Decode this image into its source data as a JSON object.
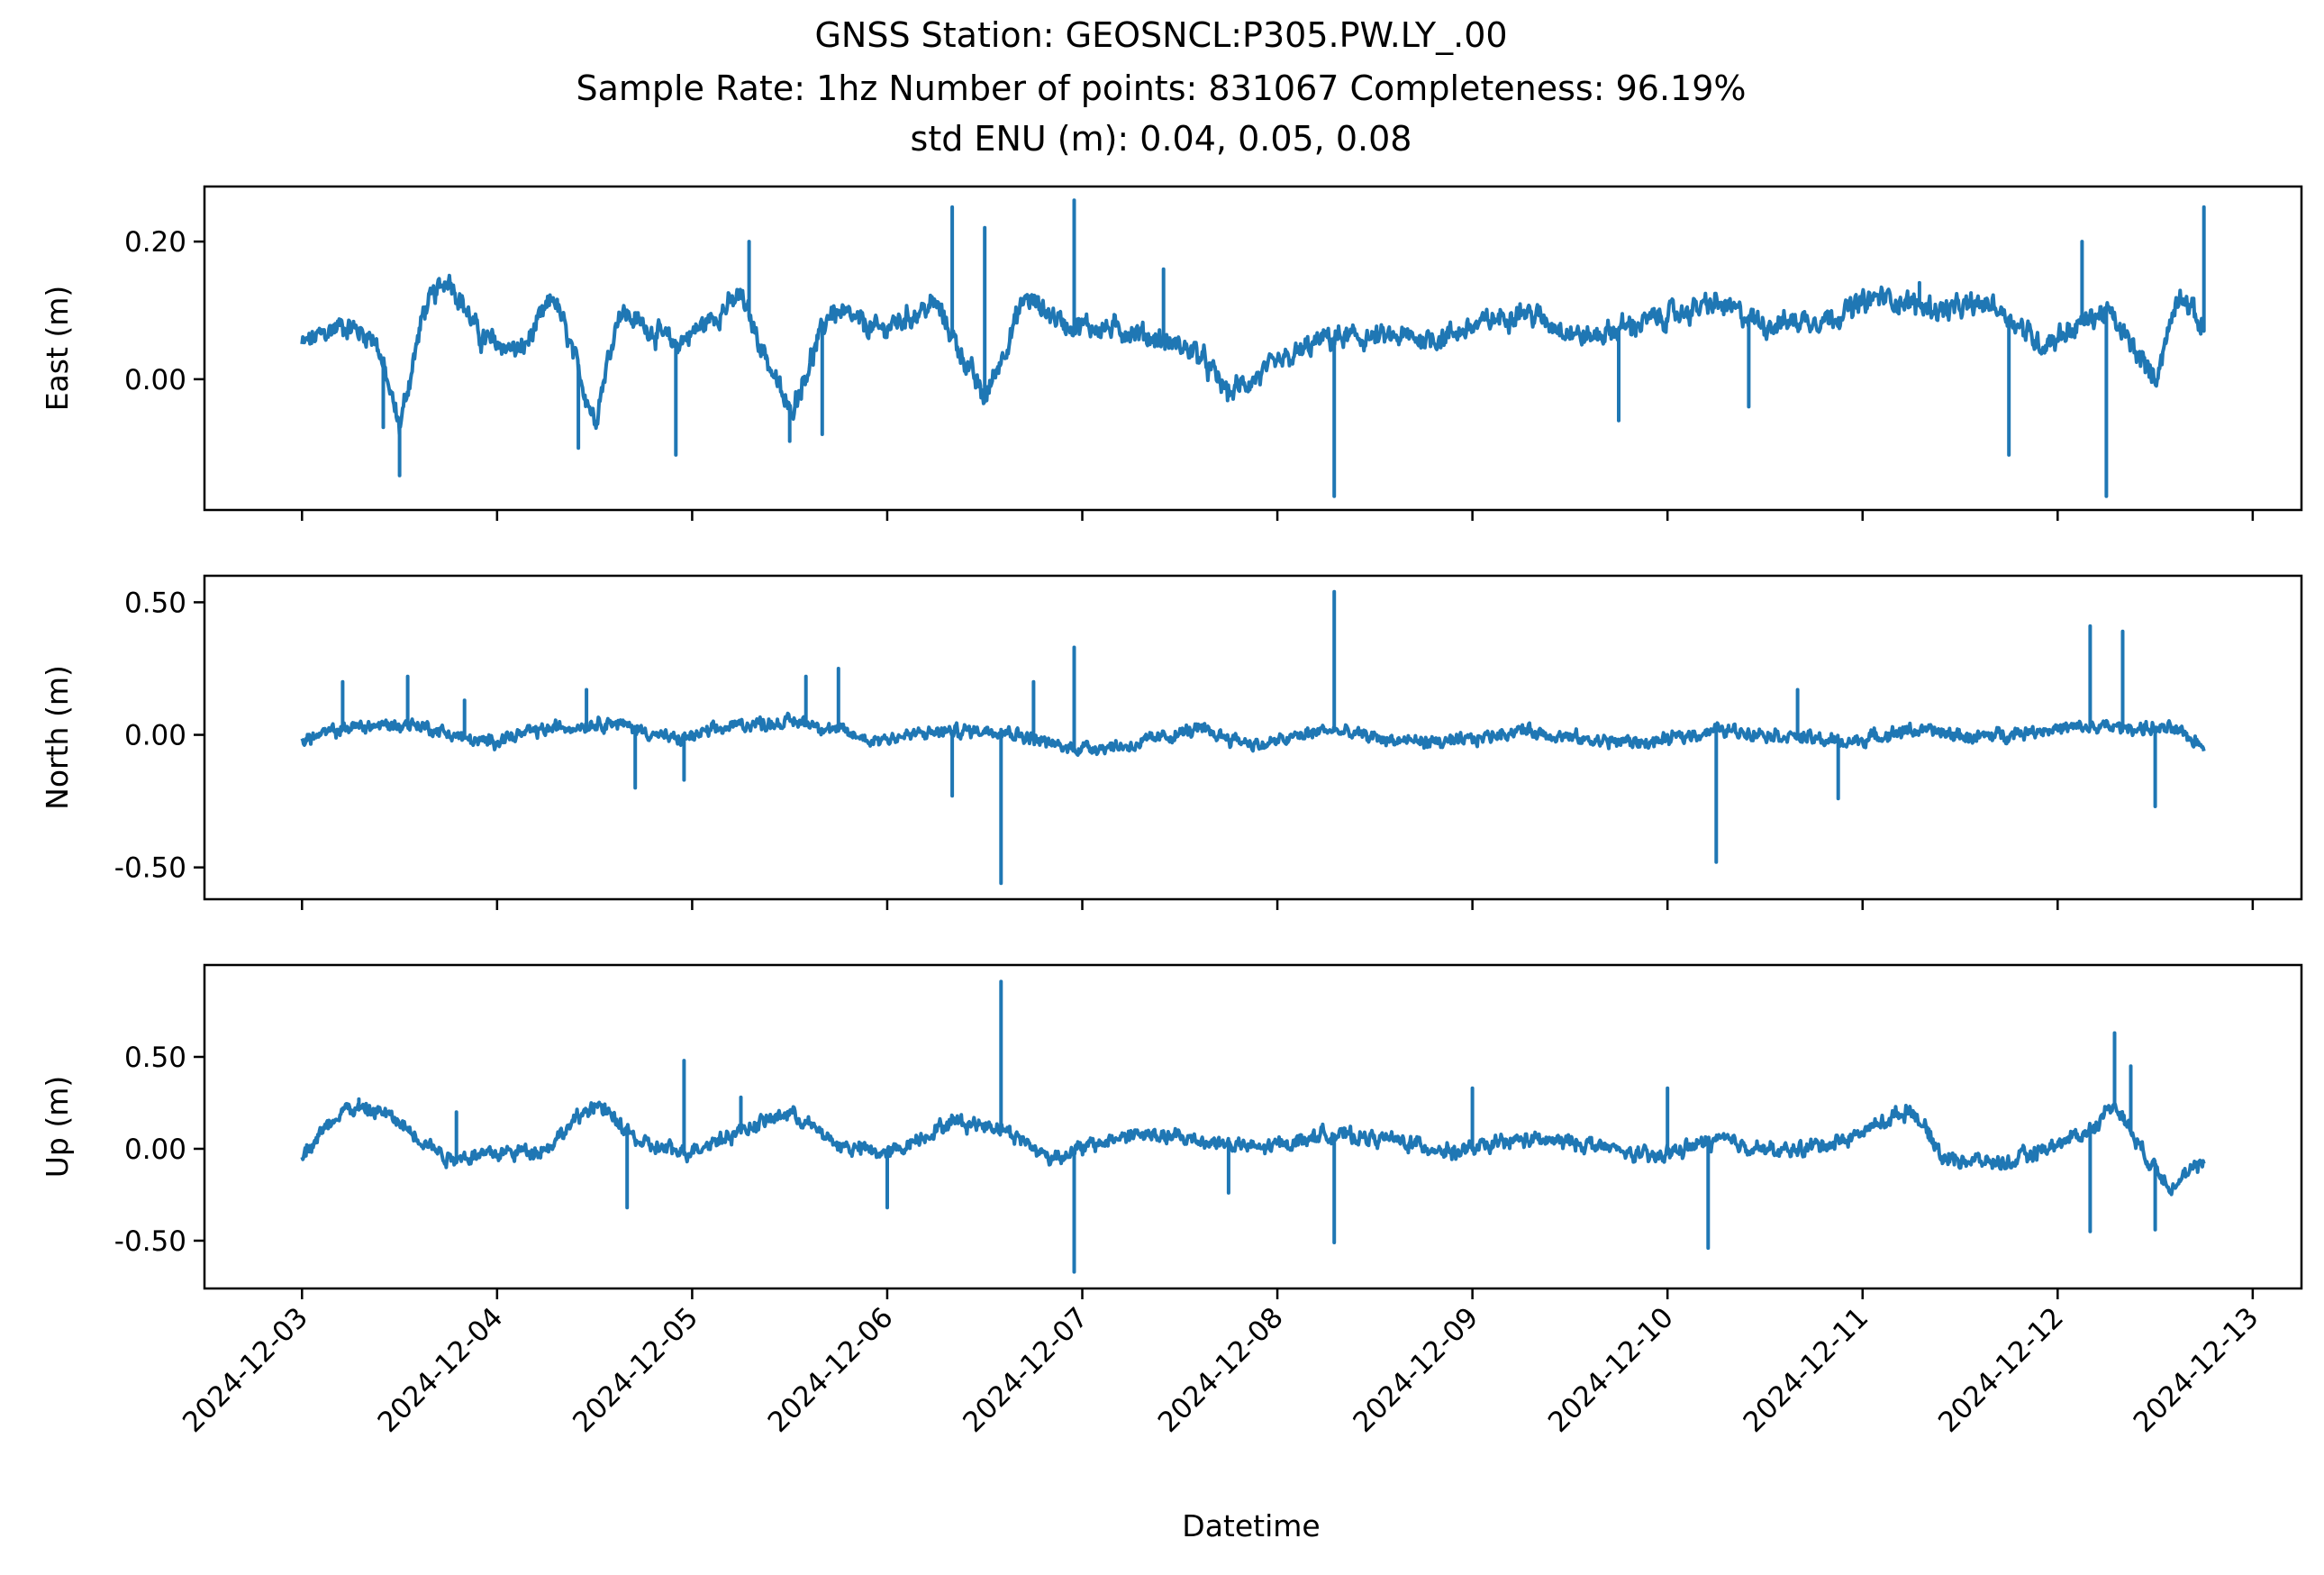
{
  "chart_data": {
    "type": "line",
    "title": {
      "line1": "GNSS Station: GEOSNCL:P305.PW.LY_.00",
      "line2": "Sample Rate: 1hz   Number of points: 831067    Completeness:  96.19%",
      "line3": "std ENU (m):  0.04, 0.05, 0.08"
    },
    "xlabel": "Datetime",
    "x_ticks": [
      "2024-12-03",
      "2024-12-04",
      "2024-12-05",
      "2024-12-06",
      "2024-12-07",
      "2024-12-08",
      "2024-12-09",
      "2024-12-10",
      "2024-12-11",
      "2024-12-12",
      "2024-12-13"
    ],
    "xlim": [
      "2024-12-02T12:00",
      "2024-12-13T06:00"
    ],
    "data_range": [
      "2024-12-03T00:00",
      "2024-12-12T18:00"
    ],
    "series_color": "#1f77b4",
    "panels": [
      {
        "ylabel": "East (m)",
        "ylim": [
          -0.19,
          0.28
        ],
        "y_ticks": [
          0.0,
          0.2
        ],
        "y_tick_labels": [
          "0.00",
          "0.20"
        ],
        "x_tick_labels_visible": false,
        "noise": 0.012,
        "baseline": [
          [
            "2024-12-03T00:00",
            0.05
          ],
          [
            "2024-12-03T05:00",
            0.08
          ],
          [
            "2024-12-03T09:00",
            0.06
          ],
          [
            "2024-12-03T12:00",
            -0.07
          ],
          [
            "2024-12-03T15:00",
            0.1
          ],
          [
            "2024-12-03T18:00",
            0.15
          ],
          [
            "2024-12-03T22:00",
            0.06
          ],
          [
            "2024-12-04T03:00",
            0.04
          ],
          [
            "2024-12-04T07:00",
            0.12
          ],
          [
            "2024-12-04T12:00",
            -0.06
          ],
          [
            "2024-12-04T15:00",
            0.1
          ],
          [
            "2024-12-04T22:00",
            0.05
          ],
          [
            "2024-12-05T06:00",
            0.12
          ],
          [
            "2024-12-05T12:00",
            -0.05
          ],
          [
            "2024-12-05T17:00",
            0.1
          ],
          [
            "2024-12-05T23:00",
            0.07
          ],
          [
            "2024-12-06T06:00",
            0.11
          ],
          [
            "2024-12-06T12:00",
            -0.03
          ],
          [
            "2024-12-06T17:00",
            0.12
          ],
          [
            "2024-12-06T22:00",
            0.08
          ],
          [
            "2024-12-07T06:00",
            0.07
          ],
          [
            "2024-12-07T14:00",
            0.04
          ],
          [
            "2024-12-07T18:00",
            -0.02
          ],
          [
            "2024-12-08T06:00",
            0.06
          ],
          [
            "2024-12-08T14:00",
            0.06
          ],
          [
            "2024-12-08T20:00",
            0.06
          ],
          [
            "2024-12-09T06:00",
            0.1
          ],
          [
            "2024-12-09T14:00",
            0.06
          ],
          [
            "2024-12-09T20:00",
            0.08
          ],
          [
            "2024-12-10T06:00",
            0.11
          ],
          [
            "2024-12-10T12:00",
            0.08
          ],
          [
            "2024-12-10T20:00",
            0.09
          ],
          [
            "2024-12-11T02:00",
            0.12
          ],
          [
            "2024-12-11T10:00",
            0.1
          ],
          [
            "2024-12-11T16:00",
            0.11
          ],
          [
            "2024-12-11T22:00",
            0.05
          ],
          [
            "2024-12-12T06:00",
            0.1
          ],
          [
            "2024-12-12T12:00",
            0.0
          ],
          [
            "2024-12-12T15:00",
            0.13
          ],
          [
            "2024-12-12T18:00",
            0.07
          ]
        ],
        "spikes": [
          [
            "2024-12-03T10:00",
            -0.07
          ],
          [
            "2024-12-03T12:00",
            -0.14
          ],
          [
            "2024-12-04T10:00",
            -0.1
          ],
          [
            "2024-12-04T22:00",
            -0.11
          ],
          [
            "2024-12-05T07:00",
            0.2
          ],
          [
            "2024-12-05T12:00",
            -0.09
          ],
          [
            "2024-12-05T16:00",
            -0.08
          ],
          [
            "2024-12-06T08:00",
            0.25
          ],
          [
            "2024-12-06T12:00",
            0.22
          ],
          [
            "2024-12-06T23:00",
            0.26
          ],
          [
            "2024-12-07T10:00",
            0.16
          ],
          [
            "2024-12-08T07:00",
            -0.17
          ],
          [
            "2024-12-09T18:00",
            -0.06
          ],
          [
            "2024-12-10T10:00",
            -0.04
          ],
          [
            "2024-12-11T07:00",
            0.14
          ],
          [
            "2024-12-11T18:00",
            -0.11
          ],
          [
            "2024-12-12T03:00",
            0.2
          ],
          [
            "2024-12-12T06:00",
            -0.17
          ],
          [
            "2024-12-12T18:00",
            0.25
          ]
        ]
      },
      {
        "ylabel": "North (m)",
        "ylim": [
          -0.62,
          0.6
        ],
        "y_ticks": [
          -0.5,
          0.0,
          0.5
        ],
        "y_tick_labels": [
          "-0.50",
          "0.00",
          "0.50"
        ],
        "x_tick_labels_visible": false,
        "noise": 0.018,
        "baseline": [
          [
            "2024-12-03T00:00",
            -0.02
          ],
          [
            "2024-12-03T06:00",
            0.03
          ],
          [
            "2024-12-03T14:00",
            0.04
          ],
          [
            "2024-12-03T22:00",
            -0.03
          ],
          [
            "2024-12-04T06:00",
            0.02
          ],
          [
            "2024-12-04T14:00",
            0.05
          ],
          [
            "2024-12-04T22:00",
            -0.02
          ],
          [
            "2024-12-05T06:00",
            0.04
          ],
          [
            "2024-12-05T14:00",
            0.05
          ],
          [
            "2024-12-05T22:00",
            -0.02
          ],
          [
            "2024-12-06T06:00",
            0.01
          ],
          [
            "2024-12-06T14:00",
            0.02
          ],
          [
            "2024-12-06T22:00",
            -0.05
          ],
          [
            "2024-12-07T06:00",
            -0.04
          ],
          [
            "2024-12-07T14:00",
            0.02
          ],
          [
            "2024-12-07T22:00",
            -0.04
          ],
          [
            "2024-12-08T06:00",
            0.02
          ],
          [
            "2024-12-08T14:00",
            -0.02
          ],
          [
            "2024-12-08T22:00",
            -0.03
          ],
          [
            "2024-12-09T06:00",
            0.02
          ],
          [
            "2024-12-09T14:00",
            -0.02
          ],
          [
            "2024-12-09T22:00",
            -0.03
          ],
          [
            "2024-12-10T06:00",
            0.02
          ],
          [
            "2024-12-10T14:00",
            0.0
          ],
          [
            "2024-12-10T22:00",
            -0.03
          ],
          [
            "2024-12-11T06:00",
            0.02
          ],
          [
            "2024-12-11T14:00",
            -0.01
          ],
          [
            "2024-12-11T22:00",
            0.02
          ],
          [
            "2024-12-12T06:00",
            0.03
          ],
          [
            "2024-12-12T14:00",
            0.02
          ],
          [
            "2024-12-12T18:00",
            -0.04
          ]
        ],
        "spikes": [
          [
            "2024-12-03T05:00",
            0.2
          ],
          [
            "2024-12-03T13:00",
            0.22
          ],
          [
            "2024-12-03T20:00",
            0.13
          ],
          [
            "2024-12-04T11:00",
            0.17
          ],
          [
            "2024-12-04T17:00",
            -0.2
          ],
          [
            "2024-12-04T23:00",
            -0.17
          ],
          [
            "2024-12-05T14:00",
            0.22
          ],
          [
            "2024-12-05T18:00",
            0.25
          ],
          [
            "2024-12-06T08:00",
            -0.23
          ],
          [
            "2024-12-06T14:00",
            -0.56
          ],
          [
            "2024-12-06T18:00",
            0.2
          ],
          [
            "2024-12-06T23:00",
            0.33
          ],
          [
            "2024-12-08T07:00",
            0.54
          ],
          [
            "2024-12-10T06:00",
            -0.48
          ],
          [
            "2024-12-10T16:00",
            0.17
          ],
          [
            "2024-12-10T21:00",
            -0.24
          ],
          [
            "2024-12-12T04:00",
            0.41
          ],
          [
            "2024-12-12T08:00",
            0.39
          ],
          [
            "2024-12-12T12:00",
            -0.27
          ]
        ]
      },
      {
        "ylabel": "Up (m)",
        "ylim": [
          -0.76,
          1.0
        ],
        "y_ticks": [
          -0.5,
          0.0,
          0.5
        ],
        "y_tick_labels": [
          "-0.50",
          "0.00",
          "0.50"
        ],
        "x_tick_labels_visible": true,
        "noise": 0.03,
        "baseline": [
          [
            "2024-12-03T00:00",
            -0.03
          ],
          [
            "2024-12-03T05:00",
            0.22
          ],
          [
            "2024-12-03T10:00",
            0.2
          ],
          [
            "2024-12-03T18:00",
            -0.05
          ],
          [
            "2024-12-04T06:00",
            0.0
          ],
          [
            "2024-12-04T12:00",
            0.25
          ],
          [
            "2024-12-04T18:00",
            0.02
          ],
          [
            "2024-12-04T23:00",
            -0.02
          ],
          [
            "2024-12-05T06:00",
            0.1
          ],
          [
            "2024-12-05T12:00",
            0.2
          ],
          [
            "2024-12-05T18:00",
            0.02
          ],
          [
            "2024-12-06T00:00",
            -0.03
          ],
          [
            "2024-12-06T08:00",
            0.15
          ],
          [
            "2024-12-06T14:00",
            0.12
          ],
          [
            "2024-12-06T20:00",
            -0.05
          ],
          [
            "2024-12-07T06:00",
            0.08
          ],
          [
            "2024-12-07T14:00",
            0.05
          ],
          [
            "2024-12-07T22:00",
            0.0
          ],
          [
            "2024-12-08T06:00",
            0.08
          ],
          [
            "2024-12-08T14:00",
            0.05
          ],
          [
            "2024-12-08T22:00",
            -0.02
          ],
          [
            "2024-12-09T06:00",
            0.05
          ],
          [
            "2024-12-09T14:00",
            0.03
          ],
          [
            "2024-12-09T22:00",
            -0.05
          ],
          [
            "2024-12-10T06:00",
            0.05
          ],
          [
            "2024-12-10T14:00",
            -0.02
          ],
          [
            "2024-12-10T22:00",
            0.05
          ],
          [
            "2024-12-11T06:00",
            0.22
          ],
          [
            "2024-12-11T10:00",
            -0.05
          ],
          [
            "2024-12-11T18:00",
            -0.08
          ],
          [
            "2024-12-12T04:00",
            0.1
          ],
          [
            "2024-12-12T07:00",
            0.25
          ],
          [
            "2024-12-12T11:00",
            -0.05
          ],
          [
            "2024-12-12T14:00",
            -0.2
          ],
          [
            "2024-12-12T18:00",
            -0.08
          ]
        ],
        "spikes": [
          [
            "2024-12-03T07:00",
            0.27
          ],
          [
            "2024-12-03T19:00",
            0.2
          ],
          [
            "2024-12-04T16:00",
            -0.32
          ],
          [
            "2024-12-04T23:00",
            0.48
          ],
          [
            "2024-12-05T06:00",
            0.28
          ],
          [
            "2024-12-06T00:00",
            -0.32
          ],
          [
            "2024-12-06T14:00",
            0.91
          ],
          [
            "2024-12-06T23:00",
            -0.67
          ],
          [
            "2024-12-07T18:00",
            -0.24
          ],
          [
            "2024-12-08T07:00",
            -0.51
          ],
          [
            "2024-12-09T00:00",
            0.33
          ],
          [
            "2024-12-10T05:00",
            -0.54
          ],
          [
            "2024-12-10T00:00",
            0.33
          ],
          [
            "2024-12-12T04:00",
            -0.45
          ],
          [
            "2024-12-12T07:00",
            0.63
          ],
          [
            "2024-12-12T09:00",
            0.45
          ],
          [
            "2024-12-12T12:00",
            -0.44
          ]
        ]
      }
    ]
  }
}
